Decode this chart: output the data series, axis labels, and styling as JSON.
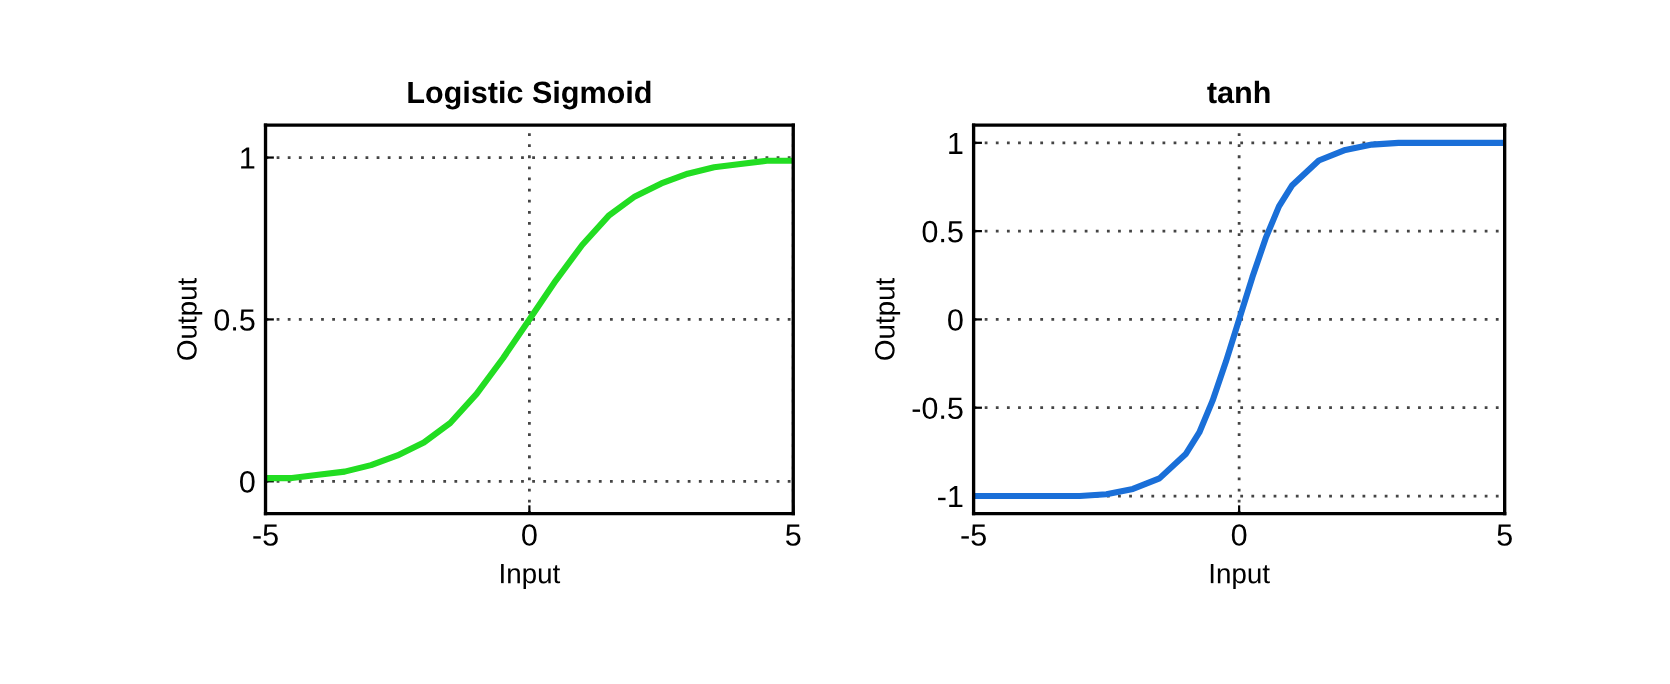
{
  "chart_data": [
    {
      "type": "line",
      "title": "Logistic Sigmoid",
      "xlabel": "Input",
      "ylabel": "Output",
      "xlim": [
        -5,
        5
      ],
      "ylim": [
        -0.1,
        1.1
      ],
      "xticks": [
        -5,
        0,
        5
      ],
      "yticks": [
        0,
        0.5,
        1
      ],
      "grid": true,
      "series": [
        {
          "color": "#22dd22",
          "x": [
            -5,
            -4.5,
            -4,
            -3.5,
            -3,
            -2.5,
            -2,
            -1.5,
            -1,
            -0.5,
            0,
            0.5,
            1,
            1.5,
            2,
            2.5,
            3,
            3.5,
            4,
            4.5,
            5
          ],
          "values": [
            0.01,
            0.01,
            0.02,
            0.03,
            0.05,
            0.08,
            0.12,
            0.18,
            0.27,
            0.38,
            0.5,
            0.62,
            0.73,
            0.82,
            0.88,
            0.92,
            0.95,
            0.97,
            0.98,
            0.99,
            0.99
          ]
        }
      ]
    },
    {
      "type": "line",
      "title": "tanh",
      "xlabel": "Input",
      "ylabel": "Output",
      "xlim": [
        -5,
        5
      ],
      "ylim": [
        -1.1,
        1.1
      ],
      "xticks": [
        -5,
        0,
        5
      ],
      "yticks": [
        -1,
        -0.5,
        0,
        0.5,
        1
      ],
      "grid": true,
      "series": [
        {
          "color": "#1a6fd8",
          "x": [
            -5,
            -4,
            -3,
            -2.5,
            -2,
            -1.5,
            -1,
            -0.75,
            -0.5,
            -0.25,
            0,
            0.25,
            0.5,
            0.75,
            1,
            1.5,
            2,
            2.5,
            3,
            4,
            5
          ],
          "values": [
            -1,
            -1,
            -1,
            -0.99,
            -0.96,
            -0.9,
            -0.76,
            -0.64,
            -0.46,
            -0.24,
            0,
            0.24,
            0.46,
            0.64,
            0.76,
            0.9,
            0.96,
            0.99,
            1,
            1,
            1
          ]
        }
      ]
    }
  ]
}
